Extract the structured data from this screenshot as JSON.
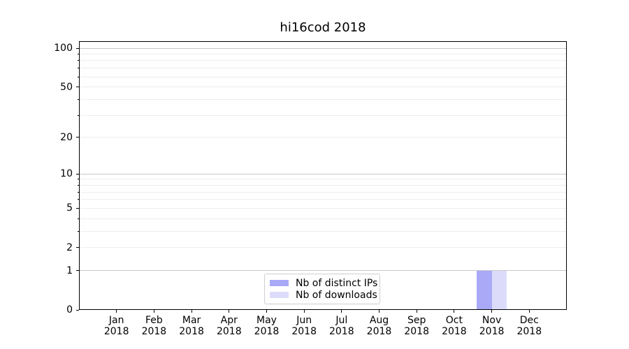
{
  "chart_data": {
    "type": "bar",
    "title": "hi16cod 2018",
    "x_tick_labels": [
      [
        "Jan",
        "2018"
      ],
      [
        "Feb",
        "2018"
      ],
      [
        "Mar",
        "2018"
      ],
      [
        "Apr",
        "2018"
      ],
      [
        "May",
        "2018"
      ],
      [
        "Jun",
        "2018"
      ],
      [
        "Jul",
        "2018"
      ],
      [
        "Aug",
        "2018"
      ],
      [
        "Sep",
        "2018"
      ],
      [
        "Oct",
        "2018"
      ],
      [
        "Nov",
        "2018"
      ],
      [
        "Dec",
        "2018"
      ]
    ],
    "series": [
      {
        "name": "Nb of distinct IPs",
        "color": "#a9a9f8",
        "values": [
          0,
          0,
          0,
          0,
          0,
          0,
          0,
          0,
          0,
          0,
          1,
          0
        ]
      },
      {
        "name": "Nb of downloads",
        "color": "#dcdcfa",
        "values": [
          0,
          0,
          0,
          0,
          0,
          0,
          0,
          0,
          0,
          0,
          1,
          0
        ]
      }
    ],
    "y_axis": {
      "scale": "log1p",
      "ylim": [
        0,
        100
      ],
      "labeled_ticks": [
        0,
        1,
        2,
        5,
        10,
        20,
        50,
        100
      ],
      "decade_ticks": [
        1,
        10,
        100
      ],
      "minor_ticks": [
        3,
        4,
        6,
        7,
        8,
        9,
        30,
        40,
        60,
        70,
        80,
        90
      ]
    },
    "legend": {
      "position": "lower-center"
    },
    "colors": {
      "major_grid": "#c8c8c8",
      "minor_grid": "#ededed",
      "axis": "#000000",
      "legend_border": "#cfcfcf"
    },
    "grid": true
  }
}
